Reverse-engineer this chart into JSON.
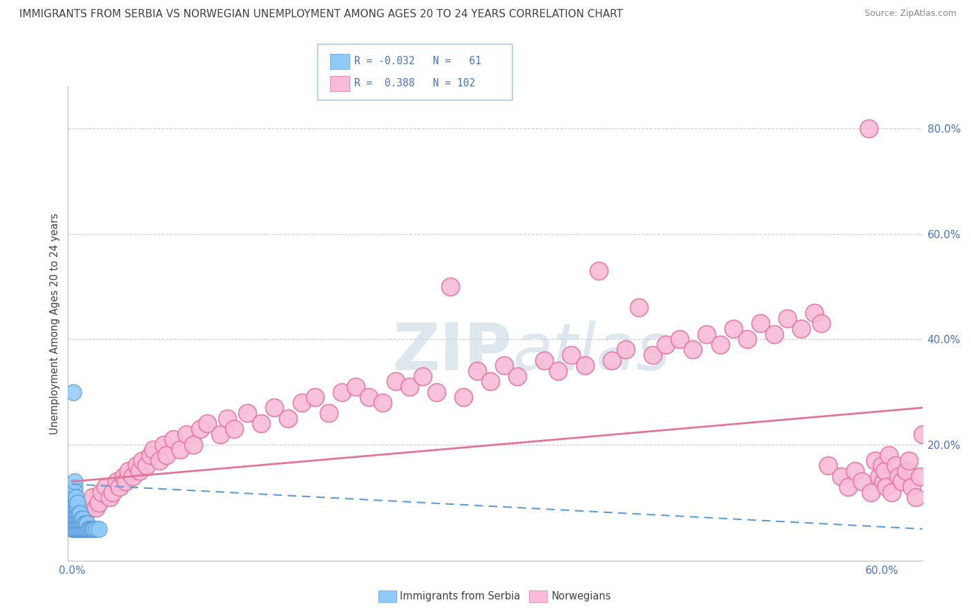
{
  "title": "IMMIGRANTS FROM SERBIA VS NORWEGIAN UNEMPLOYMENT AMONG AGES 20 TO 24 YEARS CORRELATION CHART",
  "source": "Source: ZipAtlas.com",
  "ylabel": "Unemployment Among Ages 20 to 24 years",
  "x_tick_labels": [
    "0.0%",
    "",
    "",
    "",
    "",
    "",
    "60.0%"
  ],
  "x_tick_vals": [
    0.0,
    0.1,
    0.2,
    0.3,
    0.4,
    0.5,
    0.6
  ],
  "y_tick_labels": [
    "20.0%",
    "40.0%",
    "60.0%",
    "80.0%"
  ],
  "y_tick_vals": [
    0.2,
    0.4,
    0.6,
    0.8
  ],
  "xlim": [
    -0.003,
    0.63
  ],
  "ylim": [
    -0.02,
    0.88
  ],
  "color_blue": "#90CAF9",
  "color_blue_edge": "#5B9BD5",
  "color_pink": "#F8BBD9",
  "color_pink_edge": "#E57399",
  "color_title": "#404040",
  "color_source": "#888888",
  "color_grid": "#CCCCCC",
  "color_axis": "#BBBBBB",
  "watermark_zip": "#C8D8E8",
  "watermark_atlas": "#C8D8E8",
  "background_color": "#FFFFFF",
  "serbia_x": [
    0.0,
    0.0,
    0.0,
    0.001,
    0.001,
    0.001,
    0.001,
    0.001,
    0.001,
    0.001,
    0.001,
    0.002,
    0.002,
    0.002,
    0.002,
    0.002,
    0.002,
    0.002,
    0.002,
    0.002,
    0.002,
    0.003,
    0.003,
    0.003,
    0.003,
    0.003,
    0.003,
    0.003,
    0.004,
    0.004,
    0.004,
    0.004,
    0.004,
    0.004,
    0.005,
    0.005,
    0.005,
    0.005,
    0.006,
    0.006,
    0.006,
    0.006,
    0.007,
    0.007,
    0.007,
    0.008,
    0.008,
    0.008,
    0.009,
    0.009,
    0.01,
    0.01,
    0.011,
    0.011,
    0.012,
    0.013,
    0.014,
    0.015,
    0.016,
    0.018,
    0.02
  ],
  "serbia_y": [
    0.04,
    0.06,
    0.08,
    0.04,
    0.05,
    0.06,
    0.07,
    0.08,
    0.09,
    0.1,
    0.3,
    0.04,
    0.05,
    0.06,
    0.07,
    0.08,
    0.09,
    0.1,
    0.11,
    0.12,
    0.13,
    0.04,
    0.05,
    0.06,
    0.07,
    0.08,
    0.09,
    0.1,
    0.04,
    0.05,
    0.06,
    0.07,
    0.08,
    0.09,
    0.04,
    0.05,
    0.06,
    0.07,
    0.04,
    0.05,
    0.06,
    0.07,
    0.04,
    0.05,
    0.06,
    0.04,
    0.05,
    0.06,
    0.04,
    0.05,
    0.04,
    0.05,
    0.04,
    0.05,
    0.04,
    0.04,
    0.04,
    0.04,
    0.04,
    0.04,
    0.04
  ],
  "norwegian_x": [
    0.005,
    0.008,
    0.01,
    0.012,
    0.015,
    0.018,
    0.02,
    0.022,
    0.025,
    0.028,
    0.03,
    0.033,
    0.035,
    0.038,
    0.04,
    0.042,
    0.045,
    0.048,
    0.05,
    0.052,
    0.055,
    0.058,
    0.06,
    0.065,
    0.068,
    0.07,
    0.075,
    0.08,
    0.085,
    0.09,
    0.095,
    0.1,
    0.11,
    0.115,
    0.12,
    0.13,
    0.14,
    0.15,
    0.16,
    0.17,
    0.18,
    0.19,
    0.2,
    0.21,
    0.22,
    0.23,
    0.24,
    0.25,
    0.26,
    0.27,
    0.28,
    0.29,
    0.3,
    0.31,
    0.32,
    0.33,
    0.35,
    0.36,
    0.37,
    0.38,
    0.39,
    0.4,
    0.41,
    0.42,
    0.43,
    0.44,
    0.45,
    0.46,
    0.47,
    0.48,
    0.49,
    0.5,
    0.51,
    0.52,
    0.53,
    0.54,
    0.55,
    0.555,
    0.56,
    0.57,
    0.575,
    0.58,
    0.585,
    0.59,
    0.592,
    0.595,
    0.598,
    0.6,
    0.601,
    0.602,
    0.603,
    0.605,
    0.607,
    0.61,
    0.612,
    0.615,
    0.618,
    0.62,
    0.622,
    0.625,
    0.628,
    0.63
  ],
  "norwegian_y": [
    0.08,
    0.06,
    0.07,
    0.09,
    0.1,
    0.08,
    0.09,
    0.11,
    0.12,
    0.1,
    0.11,
    0.13,
    0.12,
    0.14,
    0.13,
    0.15,
    0.14,
    0.16,
    0.15,
    0.17,
    0.16,
    0.18,
    0.19,
    0.17,
    0.2,
    0.18,
    0.21,
    0.19,
    0.22,
    0.2,
    0.23,
    0.24,
    0.22,
    0.25,
    0.23,
    0.26,
    0.24,
    0.27,
    0.25,
    0.28,
    0.29,
    0.26,
    0.3,
    0.31,
    0.29,
    0.28,
    0.32,
    0.31,
    0.33,
    0.3,
    0.5,
    0.29,
    0.34,
    0.32,
    0.35,
    0.33,
    0.36,
    0.34,
    0.37,
    0.35,
    0.53,
    0.36,
    0.38,
    0.46,
    0.37,
    0.39,
    0.4,
    0.38,
    0.41,
    0.39,
    0.42,
    0.4,
    0.43,
    0.41,
    0.44,
    0.42,
    0.45,
    0.43,
    0.16,
    0.14,
    0.12,
    0.15,
    0.13,
    0.8,
    0.11,
    0.17,
    0.14,
    0.16,
    0.13,
    0.15,
    0.12,
    0.18,
    0.11,
    0.16,
    0.14,
    0.13,
    0.15,
    0.17,
    0.12,
    0.1,
    0.14,
    0.22
  ],
  "trend_norway_x0": 0.0,
  "trend_norway_x1": 0.63,
  "trend_norway_y0": 0.13,
  "trend_norway_y1": 0.27,
  "trend_serbia_x0": 0.0,
  "trend_serbia_x1": 0.63,
  "trend_serbia_y0": 0.125,
  "trend_serbia_y1": 0.04
}
